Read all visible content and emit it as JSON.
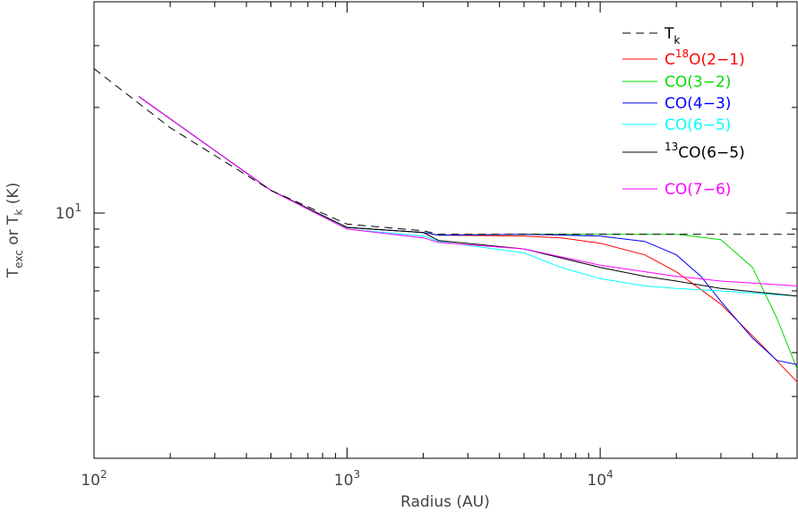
{
  "chart_data": {
    "type": "line",
    "title": "",
    "xlabel": "Radius (AU)",
    "ylabel": {
      "base1": "T",
      "sub1": "exc",
      "mid": " or ",
      "base2": "T",
      "sub2": "k",
      "tail": " (K)"
    },
    "x_scale": "log",
    "y_scale": "log",
    "xlim": [
      100,
      60000
    ],
    "ylim": [
      2.0,
      40.0
    ],
    "x_ticks": [
      {
        "value": 100,
        "base": "10",
        "exp": "2"
      },
      {
        "value": 1000,
        "base": "10",
        "exp": "3"
      },
      {
        "value": 10000,
        "base": "10",
        "exp": "4"
      }
    ],
    "y_ticks": [
      {
        "value": 10,
        "base": "10",
        "exp": "1"
      }
    ],
    "legend_position": "top-right",
    "series": [
      {
        "name": "Tk",
        "label_base": "T",
        "label_sub": "k",
        "color": "#000000",
        "dash": true,
        "x": [
          100,
          200,
          500,
          1000,
          2000,
          2300,
          5000,
          10000,
          20000,
          60000
        ],
        "y": [
          25.8,
          17.5,
          11.6,
          9.3,
          8.9,
          8.7,
          8.7,
          8.7,
          8.7,
          8.7
        ]
      },
      {
        "name": "C18O(2-1)",
        "label_pre": "C",
        "label_sup": "18",
        "label_post": "O(2−1)",
        "color": "#ff0000",
        "dash": false,
        "x": [
          150,
          500,
          1000,
          2000,
          2300,
          5000,
          7000,
          10000,
          15000,
          20000,
          30000,
          45000,
          60000
        ],
        "y": [
          21.5,
          11.6,
          9.1,
          8.8,
          8.65,
          8.6,
          8.5,
          8.2,
          7.6,
          6.8,
          5.5,
          4.1,
          3.3
        ]
      },
      {
        "name": "CO(3-2)",
        "label_pre": "CO(3−2)",
        "color": "#00dd00",
        "dash": false,
        "x": [
          150,
          500,
          1000,
          2000,
          2300,
          5000,
          10000,
          20000,
          30000,
          40000,
          50000,
          60000
        ],
        "y": [
          21.5,
          11.6,
          9.1,
          8.8,
          8.65,
          8.7,
          8.7,
          8.7,
          8.4,
          7.0,
          5.0,
          3.6
        ]
      },
      {
        "name": "CO(4-3)",
        "label_pre": "CO(4−3)",
        "color": "#0000ff",
        "dash": false,
        "x": [
          150,
          500,
          1000,
          2000,
          2300,
          5000,
          10000,
          15000,
          20000,
          25000,
          30000,
          40000,
          50000,
          60000
        ],
        "y": [
          21.5,
          11.6,
          9.1,
          8.8,
          8.65,
          8.7,
          8.6,
          8.3,
          7.6,
          6.6,
          5.6,
          4.4,
          3.8,
          3.7
        ]
      },
      {
        "name": "CO(6-5)",
        "label_pre": "CO(6−5)",
        "color": "#00ffff",
        "dash": false,
        "x": [
          150,
          500,
          1000,
          2000,
          2300,
          5000,
          7000,
          10000,
          15000,
          20000,
          30000,
          60000
        ],
        "y": [
          21.5,
          11.6,
          9.0,
          8.6,
          8.3,
          7.7,
          7.0,
          6.5,
          6.2,
          6.1,
          6.0,
          5.8
        ]
      },
      {
        "name": "13CO(6-5)",
        "label_pre": "",
        "label_sup": "13",
        "label_post": "CO(6−5)",
        "color": "#000000",
        "dash": false,
        "x": [
          150,
          500,
          1000,
          2000,
          2300,
          5000,
          10000,
          15000,
          20000,
          30000,
          60000
        ],
        "y": [
          21.5,
          11.6,
          9.1,
          8.8,
          8.35,
          7.9,
          7.0,
          6.6,
          6.4,
          6.1,
          5.8
        ]
      },
      {
        "name": "CO(7-6)",
        "label_pre": "CO(7−6)",
        "color": "#ff00ff",
        "dash": false,
        "x": [
          150,
          500,
          1000,
          2000,
          2300,
          5000,
          10000,
          20000,
          30000,
          60000
        ],
        "y": [
          21.5,
          11.6,
          9.0,
          8.5,
          8.25,
          7.9,
          7.1,
          6.6,
          6.4,
          6.2
        ]
      }
    ]
  }
}
